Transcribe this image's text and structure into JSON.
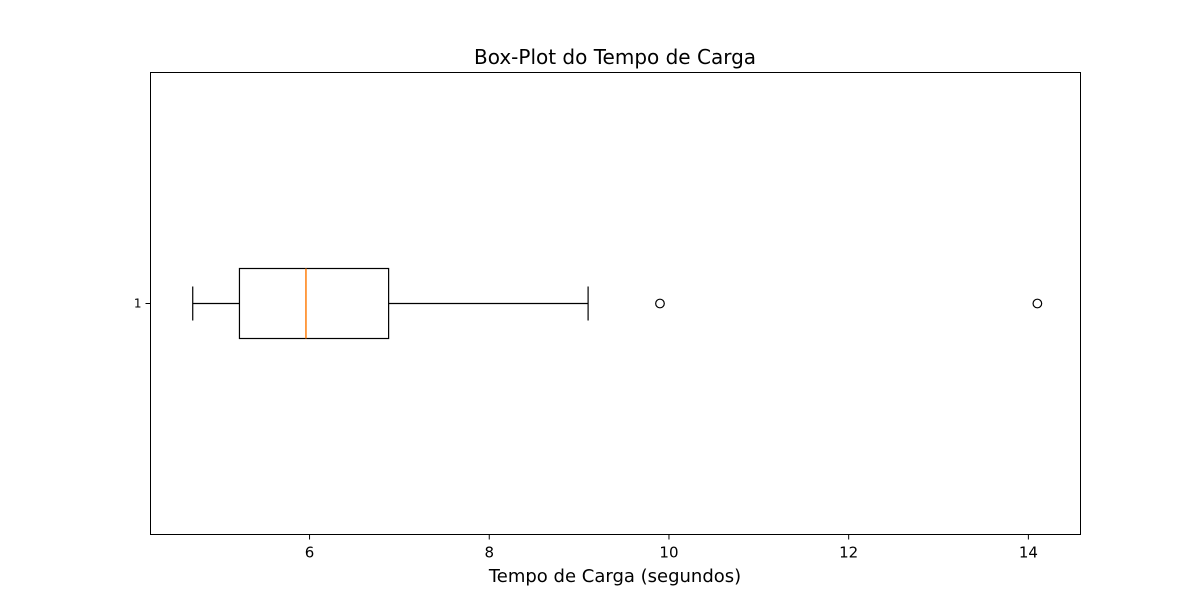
{
  "chart_data": {
    "type": "boxplot",
    "orientation": "horizontal",
    "title": "Box-Plot do Tempo de Carga",
    "xlabel": "Tempo de Carga (segundos)",
    "ylabel": "",
    "xlim": [
      4.23,
      14.58
    ],
    "xticks": [
      6,
      8,
      10,
      12,
      14
    ],
    "yticks": [
      "1"
    ],
    "grid": false,
    "colors": {
      "box": "#000000",
      "median": "#ff7f0e",
      "outlier_edge": "#000000"
    },
    "boxes": [
      {
        "label": "1",
        "whisker_low": 4.7,
        "q1": 5.22,
        "median": 5.96,
        "q3": 6.88,
        "whisker_high": 9.1,
        "outliers": [
          9.9,
          14.1
        ]
      }
    ]
  }
}
